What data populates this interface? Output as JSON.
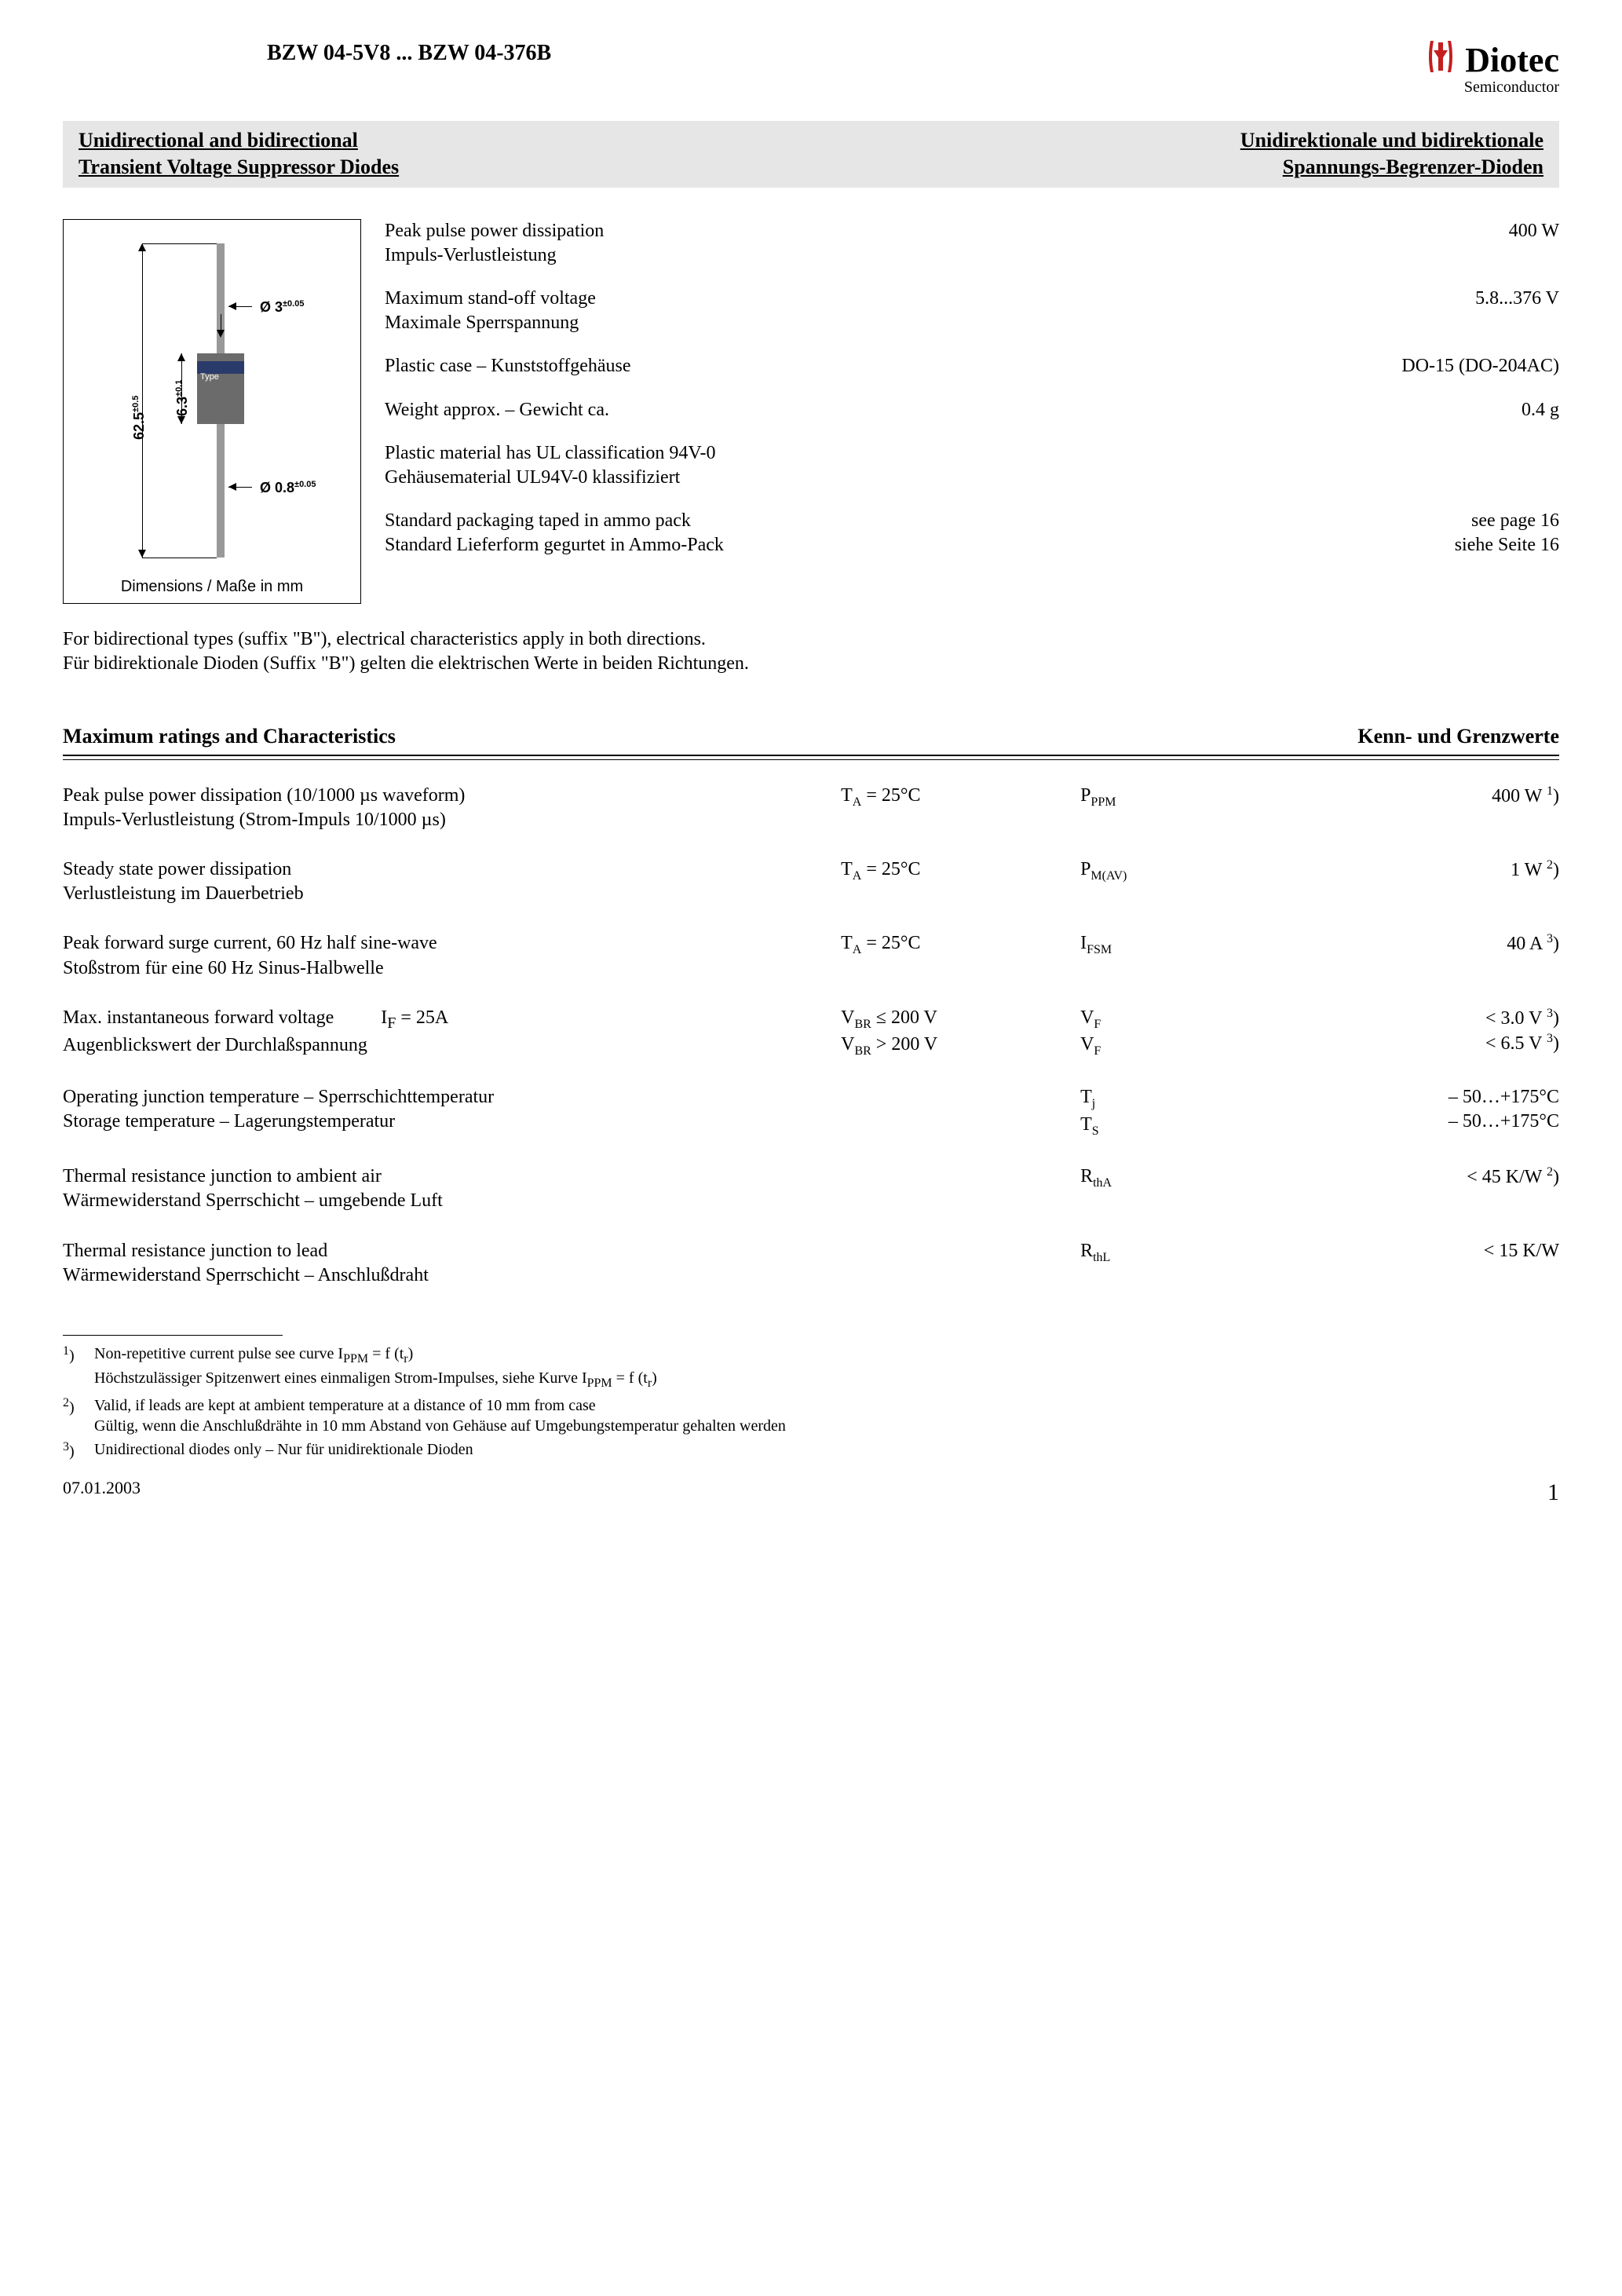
{
  "header": {
    "product_range": "BZW 04-5V8 ... BZW 04-376B",
    "logo_main": "Diotec",
    "logo_sub": "Semiconductor",
    "logo_color": "#c41e1e"
  },
  "banner": {
    "left_line1": "Unidirectional and bidirectional",
    "left_line2": "Transient Voltage Suppressor Diodes",
    "right_line1": "Unidirektionale und bidirektionale",
    "right_line2": "Spannungs-Begrenzer-Dioden",
    "background_color": "#e6e6e6"
  },
  "diagram": {
    "caption": "Dimensions / Maße in mm",
    "dim_length": "62.5",
    "dim_length_tol": "±0.5",
    "dim_lead_dia": "Ø 3",
    "dim_lead_dia_tol": "±0.05",
    "dim_body": "6.3",
    "dim_body_tol": "±0.1",
    "dim_wire_dia": "Ø 0.8",
    "dim_wire_dia_tol": "±0.05",
    "type_label": "Type",
    "body_color": "#6b6b6b",
    "band_color": "#2a3a6a",
    "lead_color": "#999999"
  },
  "specs": [
    {
      "label_en": "Peak pulse power dissipation",
      "label_de": "Impuls-Verlustleistung",
      "value": "400 W"
    },
    {
      "label_en": "Maximum stand-off voltage",
      "label_de": "Maximale Sperrspannung",
      "value": "5.8...376 V"
    },
    {
      "label_en": "Plastic case – Kunststoffgehäuse",
      "label_de": "",
      "value": "DO-15 (DO-204AC)"
    },
    {
      "label_en": "Weight approx. – Gewicht ca.",
      "label_de": "",
      "value": "0.4 g"
    },
    {
      "label_en": "Plastic material has UL classification 94V-0",
      "label_de": "Gehäusematerial UL94V-0 klassifiziert",
      "value": ""
    },
    {
      "label_en": "Standard packaging taped in ammo pack",
      "label_de": "Standard Lieferform gegurtet in Ammo-Pack",
      "value": "see page 16\nsiehe Seite 16"
    }
  ],
  "bidir_note_en": "For bidirectional types (suffix \"B\"), electrical characteristics apply in both directions.",
  "bidir_note_de": "Für bidirektionale Dioden (Suffix \"B\") gelten die elektrischen Werte in beiden Richtungen.",
  "ratings_header_left": "Maximum ratings and Characteristics",
  "ratings_header_right": "Kenn- und Grenzwerte",
  "ratings": [
    {
      "desc_en": "Peak pulse power dissipation (10/1000 µs waveform)",
      "desc_de": "Impuls-Verlustleistung (Strom-Impuls 10/1000 µs)",
      "cond": "T<sub>A</sub> = 25°C",
      "sym": "P<sub>PPM</sub>",
      "val": "400 W <sup>1</sup>)"
    },
    {
      "desc_en": "Steady state power dissipation",
      "desc_de": "Verlustleistung im Dauerbetrieb",
      "cond": "T<sub>A</sub> = 25°C",
      "sym": "P<sub>M(AV)</sub>",
      "val": "1 W <sup>2</sup>)"
    },
    {
      "desc_en": "Peak forward surge current, 60 Hz half sine-wave",
      "desc_de": "Stoßstrom für eine 60 Hz Sinus-Halbwelle",
      "cond": "T<sub>A</sub> = 25°C",
      "sym": "I<sub>FSM</sub>",
      "val": "40 A <sup>3</sup>)"
    },
    {
      "desc_en": "Max. instantaneous forward voltage&nbsp;&nbsp;&nbsp;&nbsp;&nbsp;&nbsp;&nbsp;&nbsp;&nbsp;&nbsp;I<sub>F</sub> = 25A",
      "desc_de": "Augenblickswert der Durchlaßspannung",
      "cond": "V<sub>BR</sub> ≤ 200 V<br>V<sub>BR</sub> > 200 V",
      "sym": "V<sub>F</sub><br>V<sub>F</sub>",
      "val": "< 3.0 V <sup>3</sup>)<br>< 6.5 V <sup>3</sup>)"
    },
    {
      "desc_en": "Operating junction temperature – Sperrschichttemperatur",
      "desc_de": "Storage temperature – Lagerungstemperatur",
      "cond": "",
      "sym": "T<sub>j</sub><br>T<sub>S</sub>",
      "val": "– 50…+175°C<br>– 50…+175°C"
    },
    {
      "desc_en": "Thermal resistance junction to ambient air",
      "desc_de": "Wärmewiderstand Sperrschicht – umgebende Luft",
      "cond": "",
      "sym": "R<sub>thA</sub>",
      "val": "< 45 K/W <sup>2</sup>)"
    },
    {
      "desc_en": "Thermal resistance junction to lead",
      "desc_de": "Wärmewiderstand Sperrschicht – Anschlußdraht",
      "cond": "",
      "sym": "R<sub>thL</sub>",
      "val": "< 15 K/W"
    }
  ],
  "footnotes": [
    {
      "marker": "1)",
      "text_en": "Non-repetitive current pulse see curve I<sub>PPM</sub> = f (t<sub>r</sub>)",
      "text_de": "Höchstzulässiger Spitzenwert eines einmaligen Strom-Impulses, siehe Kurve I<sub>PPM</sub> = f (t<sub>r</sub>)"
    },
    {
      "marker": "2)",
      "text_en": "Valid, if leads are kept at ambient temperature at a distance of 10 mm from case",
      "text_de": "Gültig, wenn die Anschlußdrähte in 10 mm Abstand von Gehäuse auf Umgebungstemperatur gehalten werden"
    },
    {
      "marker": "3)",
      "text_en": "Unidirectional diodes only – Nur für unidirektionale Dioden",
      "text_de": ""
    }
  ],
  "footer": {
    "date": "07.01.2003",
    "page": "1"
  }
}
